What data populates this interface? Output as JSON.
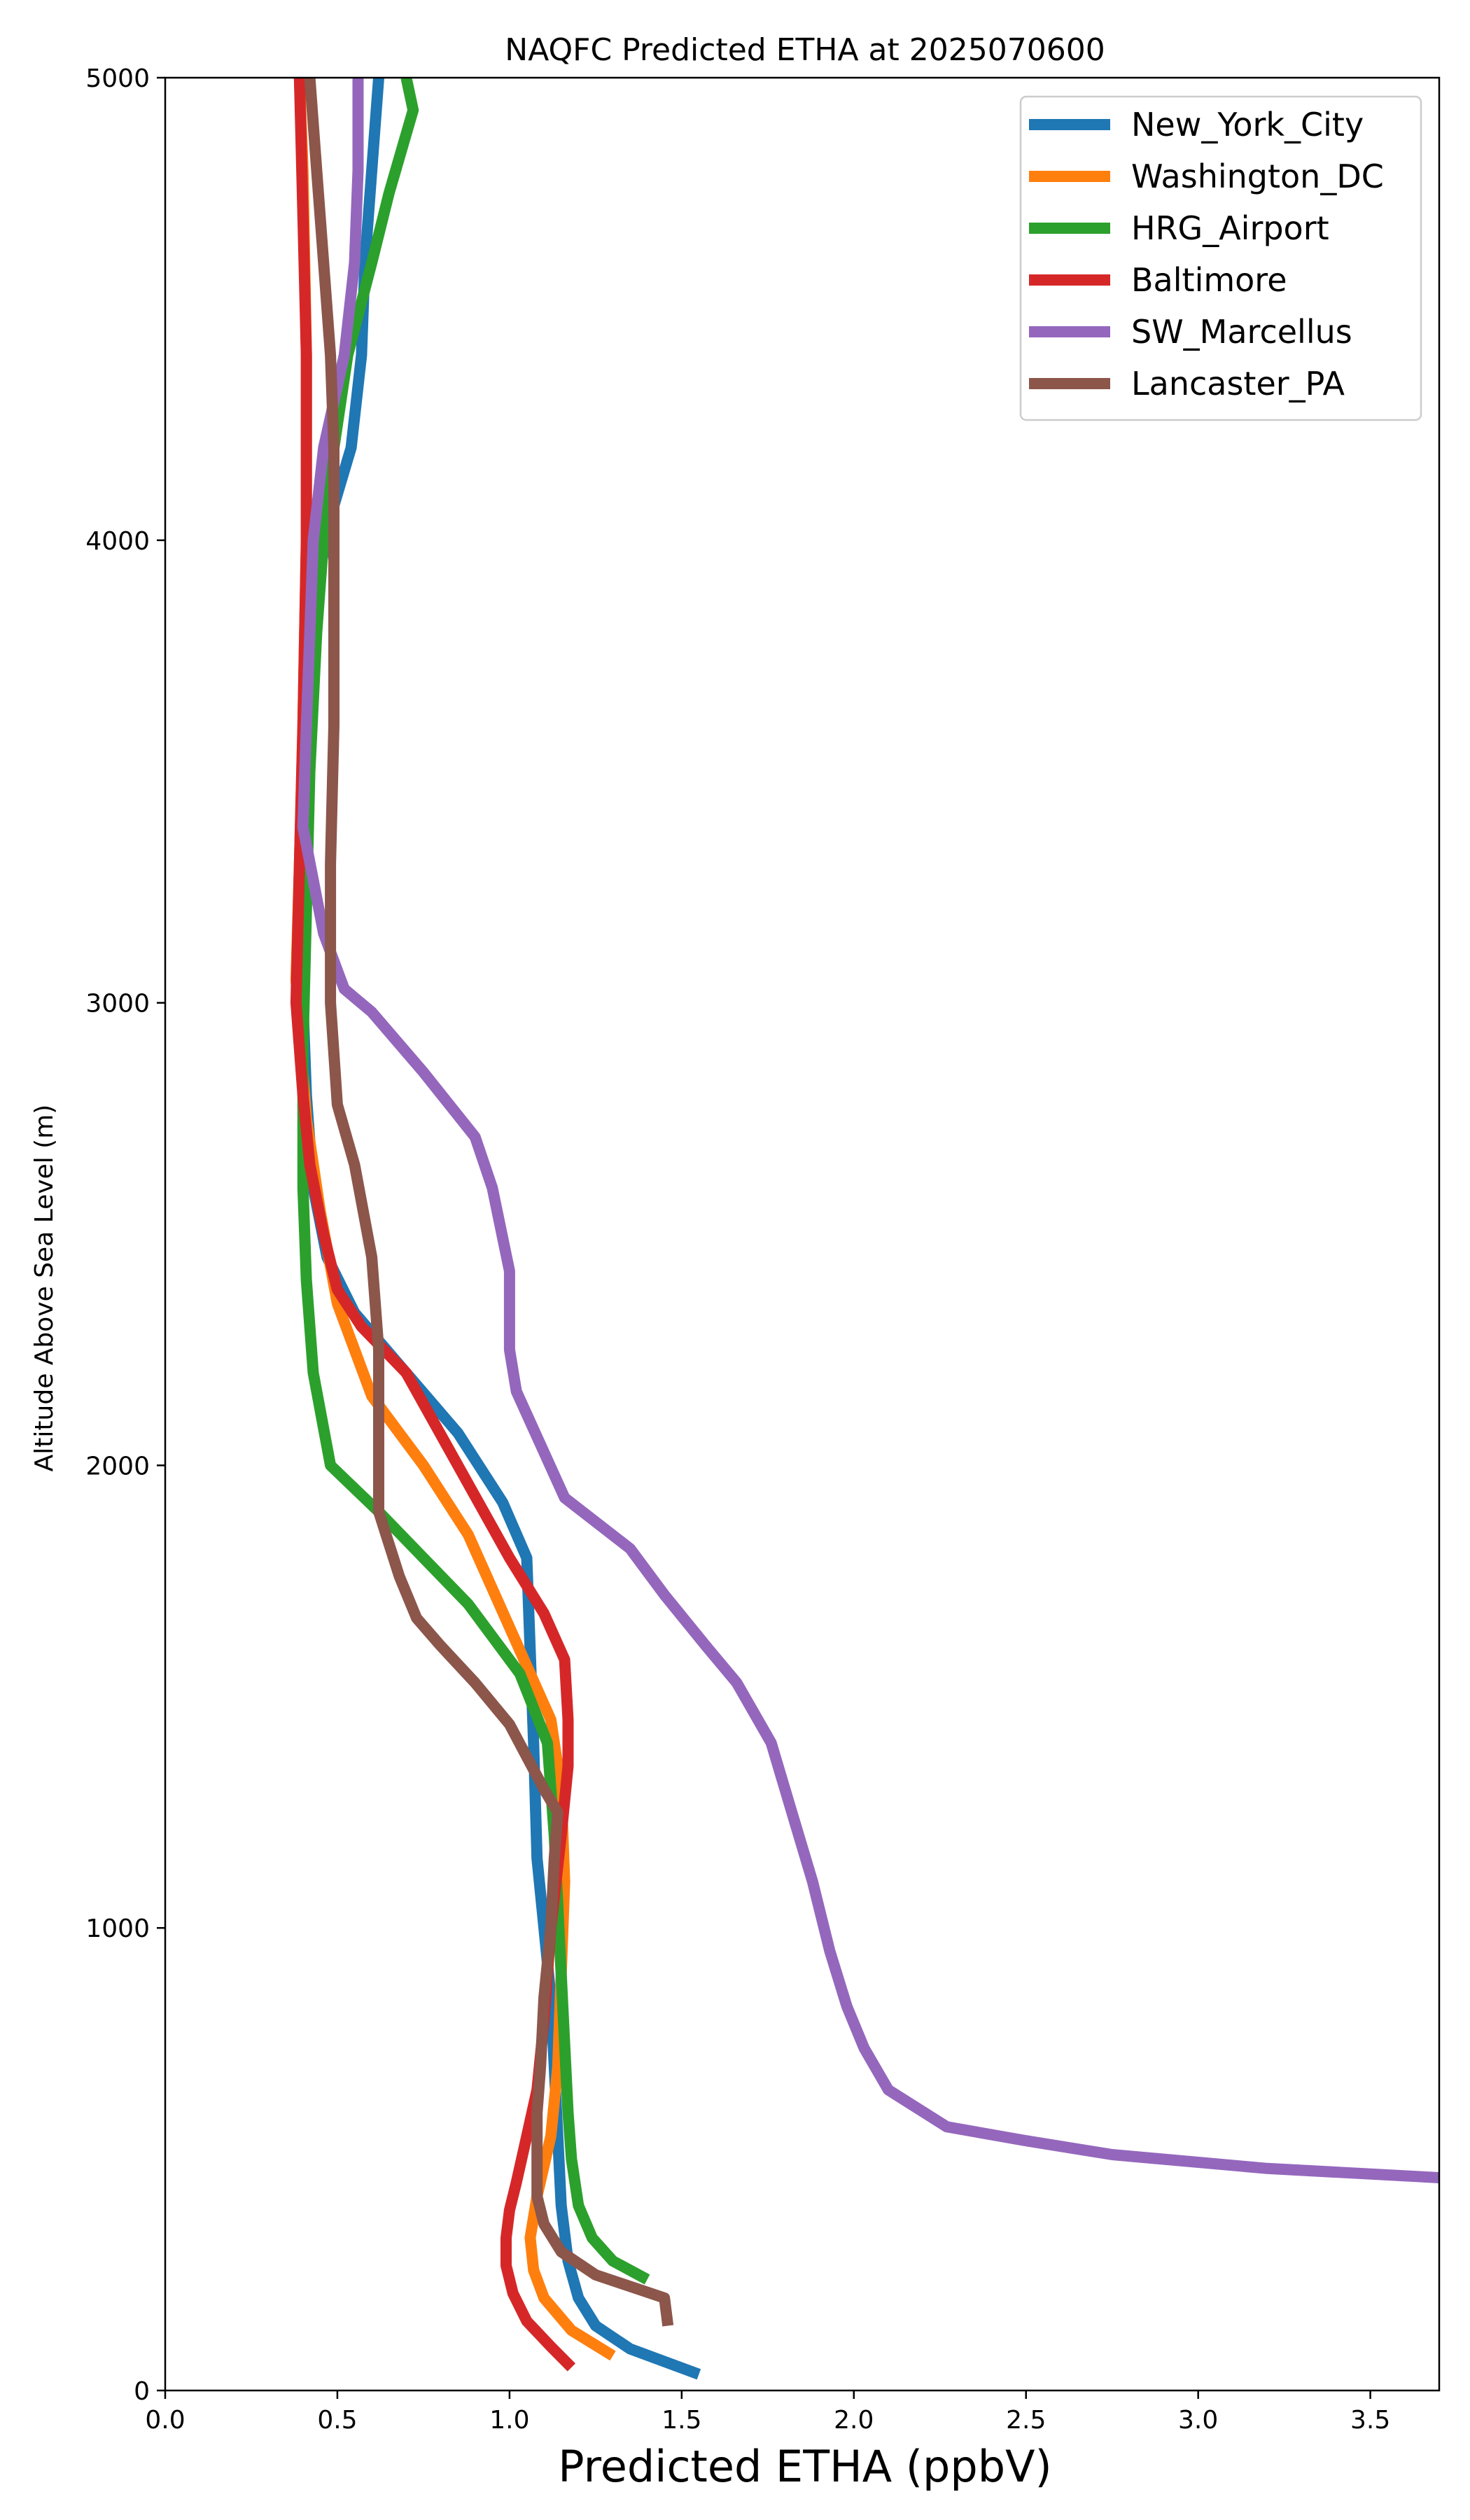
{
  "chart_data": {
    "type": "line",
    "title": "NAQFC Predicted ETHA at 2025070600",
    "xlabel": "Predicted ETHA (ppbV)",
    "ylabel": "Altitude Above Sea Level (m)",
    "xlim": [
      0,
      3.7
    ],
    "ylim": [
      0,
      5000
    ],
    "xticks": [
      0.0,
      0.5,
      1.0,
      1.5,
      2.0,
      2.5,
      3.0,
      3.5
    ],
    "xtick_labels": [
      "0.0",
      "0.5",
      "1.0",
      "1.5",
      "2.0",
      "2.5",
      "3.0",
      "3.5"
    ],
    "yticks": [
      0,
      1000,
      2000,
      3000,
      4000,
      5000
    ],
    "ytick_labels": [
      "0",
      "1000",
      "2000",
      "3000",
      "4000",
      "5000"
    ],
    "grid": false,
    "legend_position": "top-right",
    "series": [
      {
        "name": "New_York_City",
        "color": "#1f77b4",
        "points": [
          [
            1.55,
            35
          ],
          [
            1.35,
            90
          ],
          [
            1.25,
            140
          ],
          [
            1.2,
            200
          ],
          [
            1.17,
            280
          ],
          [
            1.15,
            400
          ],
          [
            1.14,
            550
          ],
          [
            1.13,
            700
          ],
          [
            1.12,
            850
          ],
          [
            1.1,
            1000
          ],
          [
            1.08,
            1150
          ],
          [
            1.07,
            1400
          ],
          [
            1.06,
            1600
          ],
          [
            1.05,
            1800
          ],
          [
            0.98,
            1920
          ],
          [
            0.85,
            2070
          ],
          [
            0.7,
            2200
          ],
          [
            0.55,
            2330
          ],
          [
            0.47,
            2450
          ],
          [
            0.43,
            2600
          ],
          [
            0.41,
            2800
          ],
          [
            0.4,
            3000
          ],
          [
            0.4,
            3300
          ],
          [
            0.41,
            3600
          ],
          [
            0.44,
            3900
          ],
          [
            0.48,
            4050
          ],
          [
            0.54,
            4200
          ],
          [
            0.57,
            4400
          ],
          [
            0.58,
            4600
          ],
          [
            0.6,
            4800
          ],
          [
            0.62,
            5000
          ]
        ]
      },
      {
        "name": "Washington_DC",
        "color": "#ff7f0e",
        "points": [
          [
            1.3,
            75
          ],
          [
            1.18,
            130
          ],
          [
            1.1,
            200
          ],
          [
            1.07,
            260
          ],
          [
            1.06,
            330
          ],
          [
            1.08,
            420
          ],
          [
            1.12,
            550
          ],
          [
            1.14,
            700
          ],
          [
            1.15,
            900
          ],
          [
            1.16,
            1100
          ],
          [
            1.15,
            1300
          ],
          [
            1.12,
            1450
          ],
          [
            1.0,
            1650
          ],
          [
            0.88,
            1850
          ],
          [
            0.75,
            2000
          ],
          [
            0.6,
            2150
          ],
          [
            0.5,
            2350
          ],
          [
            0.45,
            2550
          ],
          [
            0.41,
            2750
          ],
          [
            0.38,
            3050
          ],
          [
            0.39,
            3300
          ],
          [
            0.4,
            3600
          ],
          [
            0.41,
            4000
          ],
          [
            0.41,
            4400
          ],
          [
            0.4,
            4800
          ],
          [
            0.39,
            5000
          ]
        ]
      },
      {
        "name": "HRG_Airport",
        "color": "#2ca02c",
        "points": [
          [
            1.4,
            240
          ],
          [
            1.3,
            280
          ],
          [
            1.24,
            330
          ],
          [
            1.2,
            400
          ],
          [
            1.18,
            500
          ],
          [
            1.17,
            600
          ],
          [
            1.16,
            750
          ],
          [
            1.15,
            900
          ],
          [
            1.14,
            1050
          ],
          [
            1.13,
            1200
          ],
          [
            1.12,
            1300
          ],
          [
            1.11,
            1400
          ],
          [
            1.03,
            1550
          ],
          [
            0.88,
            1700
          ],
          [
            0.75,
            1800
          ],
          [
            0.62,
            1900
          ],
          [
            0.48,
            2000
          ],
          [
            0.43,
            2200
          ],
          [
            0.41,
            2400
          ],
          [
            0.4,
            2600
          ],
          [
            0.4,
            2900
          ],
          [
            0.41,
            3200
          ],
          [
            0.42,
            3500
          ],
          [
            0.44,
            3800
          ],
          [
            0.47,
            4100
          ],
          [
            0.53,
            4400
          ],
          [
            0.6,
            4600
          ],
          [
            0.65,
            4750
          ],
          [
            0.72,
            4930
          ],
          [
            0.7,
            5000
          ]
        ]
      },
      {
        "name": "Baltimore",
        "color": "#d62728",
        "points": [
          [
            1.18,
            50
          ],
          [
            1.12,
            95
          ],
          [
            1.05,
            150
          ],
          [
            1.01,
            210
          ],
          [
            0.99,
            270
          ],
          [
            0.99,
            330
          ],
          [
            1.0,
            390
          ],
          [
            1.02,
            450
          ],
          [
            1.05,
            550
          ],
          [
            1.08,
            650
          ],
          [
            1.1,
            800
          ],
          [
            1.12,
            1000
          ],
          [
            1.15,
            1200
          ],
          [
            1.17,
            1350
          ],
          [
            1.17,
            1450
          ],
          [
            1.16,
            1580
          ],
          [
            1.1,
            1680
          ],
          [
            1.0,
            1800
          ],
          [
            0.85,
            2000
          ],
          [
            0.7,
            2200
          ],
          [
            0.57,
            2300
          ],
          [
            0.5,
            2380
          ],
          [
            0.46,
            2500
          ],
          [
            0.42,
            2650
          ],
          [
            0.4,
            2800
          ],
          [
            0.38,
            3000
          ],
          [
            0.39,
            3300
          ],
          [
            0.4,
            3600
          ],
          [
            0.41,
            4000
          ],
          [
            0.41,
            4400
          ],
          [
            0.4,
            4700
          ],
          [
            0.39,
            5000
          ]
        ]
      },
      {
        "name": "SW_Marcellus",
        "color": "#9467bd",
        "points": [
          [
            3.7,
            460
          ],
          [
            3.2,
            480
          ],
          [
            2.75,
            510
          ],
          [
            2.5,
            540
          ],
          [
            2.27,
            570
          ],
          [
            2.1,
            650
          ],
          [
            2.03,
            740
          ],
          [
            1.98,
            830
          ],
          [
            1.93,
            950
          ],
          [
            1.88,
            1100
          ],
          [
            1.82,
            1250
          ],
          [
            1.76,
            1400
          ],
          [
            1.66,
            1530
          ],
          [
            1.57,
            1610
          ],
          [
            1.45,
            1720
          ],
          [
            1.35,
            1820
          ],
          [
            1.16,
            1930
          ],
          [
            1.02,
            2160
          ],
          [
            1.0,
            2250
          ],
          [
            1.0,
            2420
          ],
          [
            0.95,
            2600
          ],
          [
            0.9,
            2710
          ],
          [
            0.75,
            2850
          ],
          [
            0.6,
            2980
          ],
          [
            0.52,
            3030
          ],
          [
            0.46,
            3150
          ],
          [
            0.4,
            3380
          ],
          [
            0.41,
            3600
          ],
          [
            0.42,
            3800
          ],
          [
            0.43,
            4000
          ],
          [
            0.46,
            4200
          ],
          [
            0.52,
            4400
          ],
          [
            0.55,
            4600
          ],
          [
            0.56,
            4800
          ],
          [
            0.56,
            5000
          ]
        ]
      },
      {
        "name": "Lancaster_PA",
        "color": "#8c564b",
        "points": [
          [
            1.46,
            140
          ],
          [
            1.45,
            200
          ],
          [
            1.25,
            250
          ],
          [
            1.15,
            300
          ],
          [
            1.1,
            360
          ],
          [
            1.08,
            420
          ],
          [
            1.08,
            500
          ],
          [
            1.08,
            600
          ],
          [
            1.09,
            700
          ],
          [
            1.1,
            850
          ],
          [
            1.12,
            1000
          ],
          [
            1.13,
            1150
          ],
          [
            1.14,
            1250
          ],
          [
            1.1,
            1300
          ],
          [
            1.05,
            1370
          ],
          [
            1.0,
            1440
          ],
          [
            0.9,
            1530
          ],
          [
            0.8,
            1610
          ],
          [
            0.73,
            1670
          ],
          [
            0.68,
            1760
          ],
          [
            0.65,
            1830
          ],
          [
            0.62,
            1900
          ],
          [
            0.62,
            2050
          ],
          [
            0.62,
            2250
          ],
          [
            0.6,
            2450
          ],
          [
            0.55,
            2650
          ],
          [
            0.5,
            2780
          ],
          [
            0.48,
            3000
          ],
          [
            0.48,
            3300
          ],
          [
            0.49,
            3600
          ],
          [
            0.49,
            4000
          ],
          [
            0.49,
            4200
          ],
          [
            0.48,
            4400
          ],
          [
            0.46,
            4600
          ],
          [
            0.44,
            4800
          ],
          [
            0.42,
            5000
          ]
        ]
      }
    ]
  }
}
